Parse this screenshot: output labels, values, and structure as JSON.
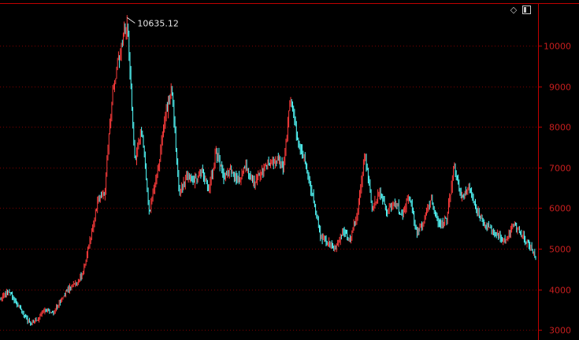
{
  "toolbar": {
    "diamond_icon": "diamond-icon",
    "panel_icon": "panel-toggle-icon"
  },
  "colors": {
    "background": "#000000",
    "frame": "#c00000",
    "grid": "#7a0000",
    "axis_text": "#c81e1e",
    "up_candle": "#ff3c3c",
    "down_candle": "#54ffff",
    "annotation": "#e6e6e6"
  },
  "chart_data": {
    "type": "candlestick",
    "title": "",
    "xlabel": "",
    "ylabel": "",
    "ylim": [
      2750,
      11050
    ],
    "y_ticks": [
      3000,
      4000,
      5000,
      6000,
      7000,
      8000,
      9000,
      10000
    ],
    "y_tick_labels": [
      "3000",
      "4000",
      "5000",
      "6000",
      "7000",
      "8000",
      "9000",
      "10000"
    ],
    "grid": "horizontal dotted",
    "max_annotation": {
      "label": "10635.12",
      "value": 10635.12
    },
    "series": [
      {
        "close": [
          3800,
          3950,
          3700,
          3400,
          3150,
          3250,
          3500,
          3400,
          3700,
          4000,
          4100,
          4350,
          5200,
          6100,
          6400,
          8800,
          9800,
          10635,
          7200,
          8000,
          5900,
          6800,
          8100,
          9050,
          6300,
          6800,
          6700,
          6900,
          6500,
          7400,
          6800,
          6900,
          6700,
          7000,
          6600,
          6900,
          7100,
          7200,
          7000,
          8700,
          7600,
          7100,
          6300,
          5300,
          5200,
          5000,
          5400,
          5200,
          5900,
          7350,
          6000,
          6400,
          5900,
          6200,
          5800,
          6300,
          5400,
          5700,
          6200,
          5600,
          5700,
          7000,
          6200,
          6500,
          6000,
          5600,
          5500,
          5300,
          5200,
          5600,
          5400,
          5100,
          4800
        ]
      }
    ]
  }
}
